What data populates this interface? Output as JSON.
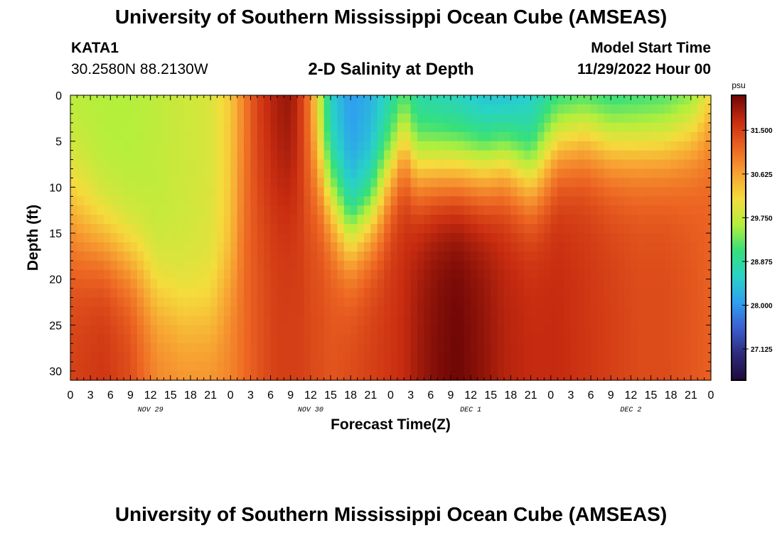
{
  "header": {
    "title": "University of Southern Mississippi Ocean Cube (AMSEAS)",
    "station": "KATA1",
    "coords": "30.2580N  88.2130W",
    "subtitle": "2-D Salinity at Depth",
    "model_start_label": "Model Start Time",
    "model_start_value": "11/29/2022 Hour 00"
  },
  "footer": {
    "title": "University of Southern Mississippi Ocean Cube (AMSEAS)"
  },
  "chart_data": {
    "type": "heatmap",
    "title": "2-D Salinity at Depth",
    "xlabel": "Forecast Time(Z)",
    "ylabel": "Depth (ft)",
    "x_range": [
      0,
      96
    ],
    "y_range": [
      0,
      31
    ],
    "x_tick_hours": [
      0,
      3,
      6,
      9,
      12,
      15,
      18,
      21,
      24,
      27,
      30,
      33,
      36,
      39,
      42,
      45,
      48,
      51,
      54,
      57,
      60,
      63,
      66,
      69,
      72,
      75,
      78,
      81,
      84,
      87,
      90,
      93,
      96
    ],
    "x_tick_labels": [
      "0",
      "3",
      "6",
      "9",
      "12",
      "15",
      "18",
      "21",
      "0",
      "3",
      "6",
      "9",
      "12",
      "15",
      "18",
      "21",
      "0",
      "3",
      "6",
      "9",
      "12",
      "15",
      "18",
      "21",
      "0",
      "3",
      "6",
      "9",
      "12",
      "15",
      "18",
      "21",
      "0"
    ],
    "date_labels": [
      {
        "hour": 12,
        "label": "NOV 29"
      },
      {
        "hour": 36,
        "label": "NOV 30"
      },
      {
        "hour": 60,
        "label": "DEC 1"
      },
      {
        "hour": 84,
        "label": "DEC 2"
      }
    ],
    "y_ticks": [
      0,
      5,
      10,
      15,
      20,
      25,
      30
    ],
    "colorbar": {
      "unit": "psu",
      "min": 26.5,
      "max": 32.2,
      "ticks": [
        31.5,
        30.625,
        29.75,
        28.875,
        28.0,
        27.125
      ],
      "tick_labels": [
        "31.500",
        "30.625",
        "29.750",
        "28.875",
        "28.000",
        "27.125"
      ],
      "colors": [
        "#1e0a3c",
        "#2d2a7a",
        "#3a5ed0",
        "#2f9ff0",
        "#28d2c8",
        "#36e07a",
        "#b4ef3c",
        "#f5dc3c",
        "#f7a032",
        "#ec6422",
        "#c82c10",
        "#6e0606"
      ]
    },
    "columns": [
      {
        "hour": 0,
        "top": 29.6,
        "mid_depth": 13,
        "bottom": 31.5,
        "width": 4
      },
      {
        "hour": 5,
        "top": 29.6,
        "mid_depth": 16,
        "bottom": 31.6,
        "width": 3
      },
      {
        "hour": 9,
        "top": 29.6,
        "mid_depth": 18,
        "bottom": 31.4,
        "width": 3
      },
      {
        "hour": 13,
        "top": 29.7,
        "mid_depth": 22,
        "bottom": 30.9,
        "width": 3
      },
      {
        "hour": 17,
        "top": 29.8,
        "mid_depth": 24,
        "bottom": 30.8,
        "width": 3
      },
      {
        "hour": 21,
        "top": 29.9,
        "mid_depth": 24,
        "bottom": 30.8,
        "width": 3
      },
      {
        "hour": 24,
        "top": 30.3,
        "mid_depth": 20,
        "bottom": 30.9,
        "width": 3
      },
      {
        "hour": 26,
        "top": 30.9,
        "mid_depth": 10,
        "bottom": 31.1,
        "width": 4
      },
      {
        "hour": 28,
        "top": 31.5,
        "mid_depth": 10,
        "bottom": 31.3,
        "width": 4
      },
      {
        "hour": 31,
        "top": 31.9,
        "mid_depth": 10,
        "bottom": 31.5,
        "width": 4
      },
      {
        "hour": 33,
        "top": 32.0,
        "mid_depth": 10,
        "bottom": 31.5,
        "width": 4
      },
      {
        "hour": 35,
        "top": 31.4,
        "mid_depth": 10,
        "bottom": 31.5,
        "width": 4
      },
      {
        "hour": 36,
        "top": 30.8,
        "mid_depth": 10,
        "bottom": 31.4,
        "width": 4
      },
      {
        "hour": 37,
        "top": 30.0,
        "mid_depth": 8,
        "bottom": 31.4,
        "width": 3
      },
      {
        "hour": 39,
        "top": 28.5,
        "mid_depth": 11,
        "bottom": 31.3,
        "width": 3
      },
      {
        "hour": 42,
        "top": 28.0,
        "mid_depth": 15,
        "bottom": 31.4,
        "width": 3
      },
      {
        "hour": 45,
        "top": 28.2,
        "mid_depth": 13,
        "bottom": 31.5,
        "width": 3
      },
      {
        "hour": 48,
        "top": 28.6,
        "mid_depth": 8,
        "bottom": 31.6,
        "width": 3
      },
      {
        "hour": 50,
        "top": 28.8,
        "mid_depth": 5,
        "bottom": 31.7,
        "width": 3
      },
      {
        "hour": 52,
        "top": 28.6,
        "mid_depth": 8,
        "bottom": 31.9,
        "width": 3
      },
      {
        "hour": 55,
        "top": 28.5,
        "mid_depth": 8,
        "bottom": 32.1,
        "width": 3
      },
      {
        "hour": 58,
        "top": 28.4,
        "mid_depth": 8,
        "bottom": 32.2,
        "width": 3
      },
      {
        "hour": 62,
        "top": 28.2,
        "mid_depth": 8,
        "bottom": 32.0,
        "width": 3
      },
      {
        "hour": 65,
        "top": 28.1,
        "mid_depth": 7,
        "bottom": 31.8,
        "width": 3
      },
      {
        "hour": 69,
        "top": 28.4,
        "mid_depth": 9,
        "bottom": 31.7,
        "width": 3
      },
      {
        "hour": 73,
        "top": 28.6,
        "mid_depth": 5,
        "bottom": 31.7,
        "width": 3
      },
      {
        "hour": 77,
        "top": 28.6,
        "mid_depth": 4,
        "bottom": 31.6,
        "width": 3
      },
      {
        "hour": 81,
        "top": 28.6,
        "mid_depth": 5,
        "bottom": 31.5,
        "width": 3
      },
      {
        "hour": 85,
        "top": 28.7,
        "mid_depth": 5,
        "bottom": 31.4,
        "width": 3
      },
      {
        "hour": 89,
        "top": 28.8,
        "mid_depth": 5,
        "bottom": 31.4,
        "width": 3
      },
      {
        "hour": 93,
        "top": 29.0,
        "mid_depth": 4,
        "bottom": 31.3,
        "width": 3
      },
      {
        "hour": 96,
        "top": 29.6,
        "mid_depth": 2,
        "bottom": 31.2,
        "width": 3
      }
    ]
  }
}
